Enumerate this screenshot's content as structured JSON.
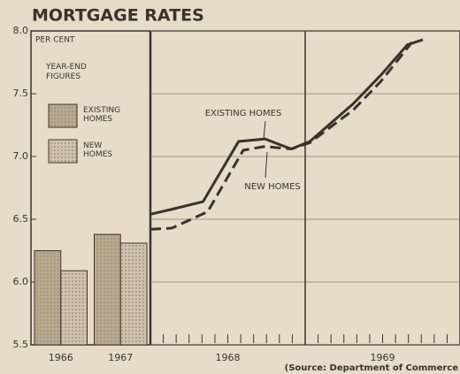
{
  "title": "MORTGAGE RATES",
  "source": "(Source: Department of Commerce",
  "chart_data": [
    {
      "type": "bar",
      "note1": "PER CENT",
      "note2": "YEAR-END FIGURES",
      "categories": [
        "1966",
        "1967"
      ],
      "series": [
        {
          "name": "EXISTING HOMES",
          "color": "#b7a890",
          "values": [
            6.25,
            6.38
          ]
        },
        {
          "name": "NEW HOMES",
          "color": "#cfc3ad",
          "values": [
            6.09,
            6.31
          ]
        }
      ],
      "ylim": [
        5.5,
        8.0
      ],
      "yticks": [
        5.5,
        {
          "value": 6,
          "label": "6.0"
        },
        6.5,
        {
          "value": 7,
          "label": "7.0"
        },
        7.5,
        {
          "value": 8,
          "label": "8.0"
        }
      ]
    },
    {
      "type": "line",
      "series": [
        {
          "name": "EXISTING HOMES",
          "color": "#3a332c",
          "dash": false,
          "x": [
            1968.0,
            1968.14,
            1968.34,
            1968.57,
            1968.74,
            1968.91,
            1969.03,
            1969.17,
            1969.31,
            1969.49,
            1969.66,
            1969.76
          ],
          "values": [
            6.54,
            6.58,
            6.64,
            7.12,
            7.14,
            7.06,
            7.12,
            7.27,
            7.42,
            7.65,
            7.89,
            7.93
          ]
        },
        {
          "name": "NEW HOMES",
          "color": "#3a332c",
          "dash": true,
          "x": [
            1968.0,
            1968.14,
            1968.37,
            1968.6,
            1968.74,
            1968.91,
            1969.03,
            1969.17,
            1969.31,
            1969.49,
            1969.69
          ],
          "values": [
            6.42,
            6.43,
            6.56,
            7.05,
            7.08,
            7.06,
            7.11,
            7.24,
            7.37,
            7.6,
            7.91
          ]
        }
      ],
      "xlim": [
        1968,
        1970
      ],
      "xticks": [
        {
          "value": 1968.5,
          "label": "1968"
        },
        {
          "value": 1969.5,
          "label": "1969"
        }
      ],
      "ylim": [
        5.5,
        8.0
      ],
      "grid": true
    }
  ]
}
